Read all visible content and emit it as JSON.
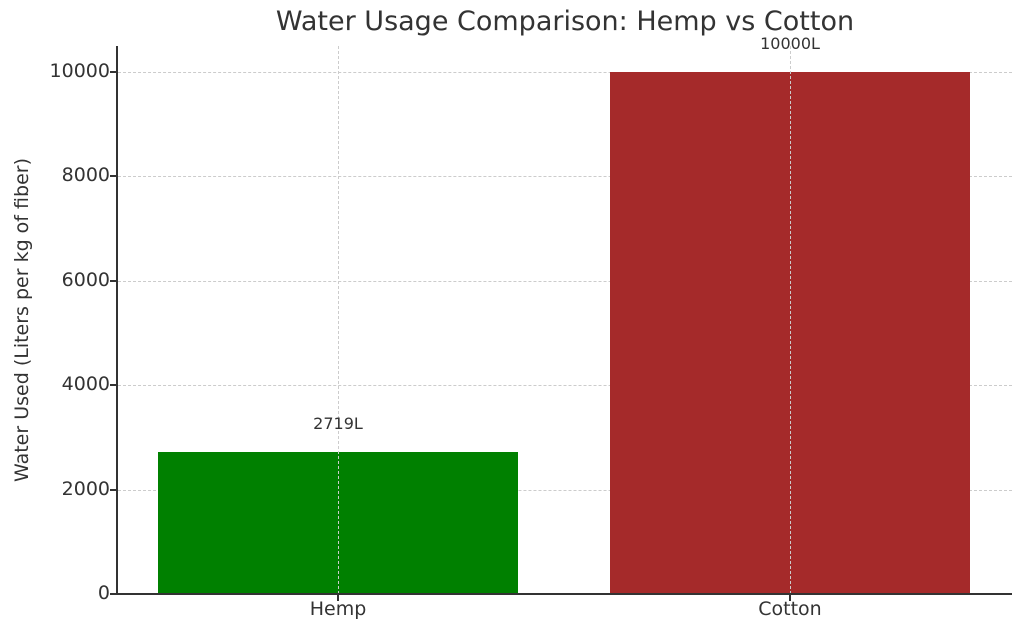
{
  "chart_data": {
    "type": "bar",
    "title": "Water Usage Comparison: Hemp vs Cotton",
    "xlabel": "",
    "ylabel": "Water Used (Liters per kg of fiber)",
    "categories": [
      "Hemp",
      "Cotton"
    ],
    "values": [
      2719,
      10000
    ],
    "value_labels": [
      "2719L",
      "10000L"
    ],
    "colors": [
      "#008000",
      "#a52a2a"
    ],
    "ylim": [
      0,
      10500
    ],
    "yticks": [
      0,
      2000,
      4000,
      6000,
      8000,
      10000
    ],
    "ytick_labels": [
      "0",
      "2000",
      "4000",
      "6000",
      "8000",
      "10000"
    ],
    "grid": true,
    "grid_style": "dashed",
    "legend": null
  }
}
